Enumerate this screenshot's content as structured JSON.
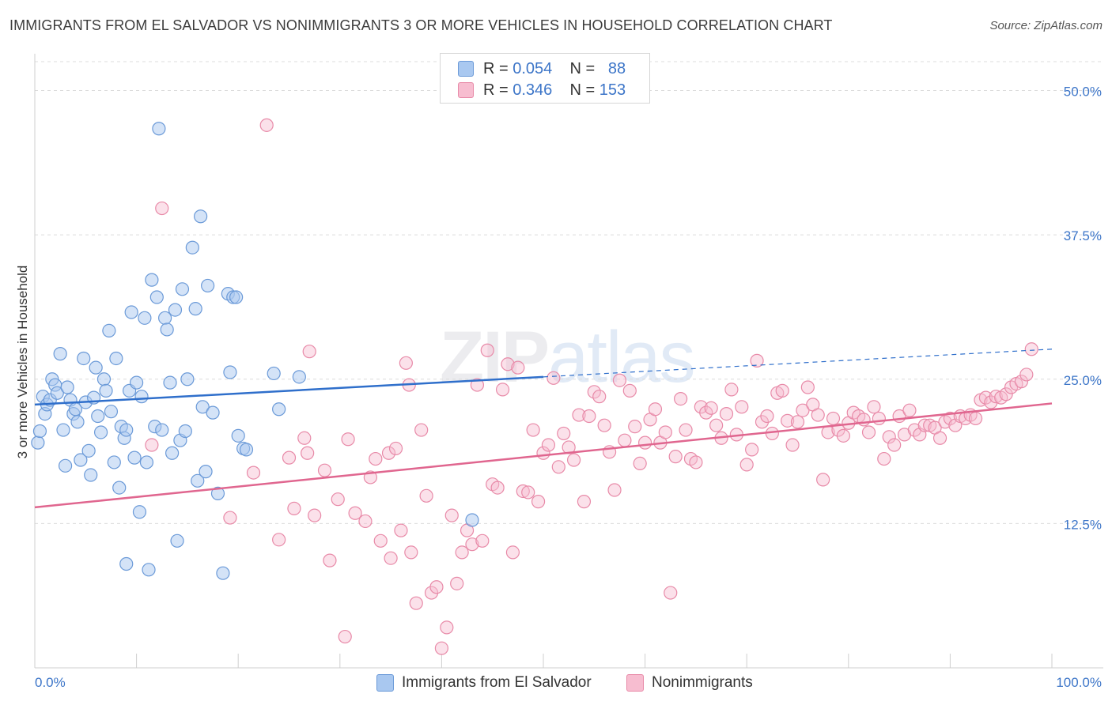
{
  "title": "IMMIGRANTS FROM EL SALVADOR VS NONIMMIGRANTS 3 OR MORE VEHICLES IN HOUSEHOLD CORRELATION CHART",
  "source": "Source: ZipAtlas.com",
  "watermark": {
    "zip": "ZIP",
    "atlas": "atlas"
  },
  "legend": {
    "series1": {
      "r_label": "R =",
      "r_value": "0.054",
      "n_label": "N =",
      "n_value": "88"
    },
    "series2": {
      "r_label": "R =",
      "r_value": "0.346",
      "n_label": "N =",
      "n_value": "153"
    }
  },
  "bottom_legend": {
    "series1": "Immigrants from El Salvador",
    "series2": "Nonimmigrants"
  },
  "colors": {
    "blue_fill": "#a9c8f0",
    "blue_stroke": "#6b9ad8",
    "blue_line": "#2f6fcb",
    "pink_fill": "#f7bdd0",
    "pink_stroke": "#e88aa8",
    "pink_line": "#e0668f",
    "axis_text": "#3c75c8",
    "grid": "#dcdcdc"
  },
  "chart_data": {
    "type": "scatter",
    "title": "IMMIGRANTS FROM EL SALVADOR VS NONIMMIGRANTS 3 OR MORE VEHICLES IN HOUSEHOLD CORRELATION CHART",
    "xlabel": "",
    "ylabel": "3 or more Vehicles in Household",
    "xlim": [
      0,
      100
    ],
    "ylim": [
      0,
      52.5
    ],
    "x_tick_labels": [
      "0.0%",
      "100.0%"
    ],
    "y_ticks": [
      12.5,
      25.0,
      37.5,
      50.0
    ],
    "y_tick_labels": [
      "12.5%",
      "25.0%",
      "37.5%",
      "50.0%"
    ],
    "series": [
      {
        "name": "Immigrants from El Salvador",
        "trend": {
          "x0": 0,
          "y0": 22.8,
          "x1": 50,
          "y1": 25.2,
          "dashed_to_x": 100,
          "dashed_to_y": 27.6
        },
        "points": [
          [
            0.3,
            19.5
          ],
          [
            0.5,
            20.5
          ],
          [
            0.8,
            23.5
          ],
          [
            1.0,
            22.0
          ],
          [
            1.2,
            22.8
          ],
          [
            1.5,
            23.2
          ],
          [
            1.7,
            25.0
          ],
          [
            2.0,
            24.5
          ],
          [
            2.2,
            23.8
          ],
          [
            2.5,
            27.2
          ],
          [
            2.8,
            20.6
          ],
          [
            3.0,
            17.5
          ],
          [
            3.2,
            24.3
          ],
          [
            3.5,
            23.2
          ],
          [
            3.8,
            22.0
          ],
          [
            4.0,
            22.4
          ],
          [
            4.2,
            21.3
          ],
          [
            4.5,
            18.0
          ],
          [
            4.8,
            26.8
          ],
          [
            5.0,
            23.0
          ],
          [
            5.3,
            18.8
          ],
          [
            5.5,
            16.7
          ],
          [
            5.8,
            23.4
          ],
          [
            6.0,
            26.0
          ],
          [
            6.2,
            21.8
          ],
          [
            6.5,
            20.4
          ],
          [
            6.8,
            25.0
          ],
          [
            7.0,
            24.0
          ],
          [
            7.3,
            29.2
          ],
          [
            7.5,
            22.2
          ],
          [
            7.8,
            17.8
          ],
          [
            8.0,
            26.8
          ],
          [
            8.3,
            15.6
          ],
          [
            8.5,
            20.9
          ],
          [
            8.8,
            19.9
          ],
          [
            9.0,
            20.6
          ],
          [
            9.3,
            24.0
          ],
          [
            9.5,
            30.8
          ],
          [
            9.8,
            18.2
          ],
          [
            10.0,
            24.7
          ],
          [
            10.3,
            13.5
          ],
          [
            10.5,
            23.5
          ],
          [
            10.8,
            30.3
          ],
          [
            11.0,
            17.8
          ],
          [
            11.2,
            8.5
          ],
          [
            11.5,
            33.6
          ],
          [
            11.8,
            20.9
          ],
          [
            12.0,
            32.1
          ],
          [
            12.2,
            46.7
          ],
          [
            12.5,
            20.6
          ],
          [
            12.8,
            30.3
          ],
          [
            13.0,
            29.3
          ],
          [
            13.3,
            24.7
          ],
          [
            13.5,
            18.6
          ],
          [
            13.8,
            31.0
          ],
          [
            14.0,
            11.0
          ],
          [
            14.3,
            19.7
          ],
          [
            14.5,
            32.8
          ],
          [
            14.8,
            20.5
          ],
          [
            15.0,
            25.0
          ],
          [
            15.5,
            36.4
          ],
          [
            15.8,
            31.1
          ],
          [
            16.0,
            16.2
          ],
          [
            16.3,
            39.1
          ],
          [
            16.5,
            22.6
          ],
          [
            16.8,
            17.0
          ],
          [
            17.0,
            33.1
          ],
          [
            17.5,
            22.1
          ],
          [
            18.0,
            15.1
          ],
          [
            18.5,
            8.2
          ],
          [
            19.0,
            32.4
          ],
          [
            19.2,
            25.6
          ],
          [
            19.5,
            32.1
          ],
          [
            19.8,
            32.1
          ],
          [
            20.0,
            20.1
          ],
          [
            20.5,
            19.0
          ],
          [
            20.8,
            18.9
          ],
          [
            23.5,
            25.5
          ],
          [
            24.0,
            22.4
          ],
          [
            26.0,
            25.2
          ],
          [
            43.0,
            12.8
          ],
          [
            9.0,
            9.0
          ]
        ]
      },
      {
        "name": "Nonimmigrants",
        "trend": {
          "x0": 0,
          "y0": 13.9,
          "x1": 100,
          "y1": 22.9
        },
        "points": [
          [
            11.5,
            19.3
          ],
          [
            12.5,
            39.8
          ],
          [
            19.2,
            13.0
          ],
          [
            21.5,
            16.9
          ],
          [
            22.8,
            47.0
          ],
          [
            24.0,
            11.1
          ],
          [
            25.0,
            18.2
          ],
          [
            25.5,
            13.8
          ],
          [
            26.5,
            19.9
          ],
          [
            26.8,
            18.6
          ],
          [
            27.0,
            27.4
          ],
          [
            27.5,
            13.2
          ],
          [
            28.5,
            17.1
          ],
          [
            29.0,
            9.3
          ],
          [
            29.8,
            14.6
          ],
          [
            30.5,
            2.7
          ],
          [
            30.8,
            19.8
          ],
          [
            31.5,
            13.4
          ],
          [
            32.5,
            12.7
          ],
          [
            33.0,
            16.5
          ],
          [
            33.5,
            18.1
          ],
          [
            34.0,
            11.0
          ],
          [
            34.8,
            18.6
          ],
          [
            35.0,
            9.5
          ],
          [
            35.5,
            19.0
          ],
          [
            36.0,
            11.9
          ],
          [
            36.5,
            26.4
          ],
          [
            36.8,
            24.5
          ],
          [
            37.0,
            10.0
          ],
          [
            37.5,
            5.6
          ],
          [
            38.0,
            20.6
          ],
          [
            38.5,
            14.9
          ],
          [
            39.0,
            6.5
          ],
          [
            39.5,
            7.0
          ],
          [
            40.0,
            1.7
          ],
          [
            40.5,
            3.5
          ],
          [
            41.0,
            13.2
          ],
          [
            41.5,
            7.3
          ],
          [
            42.0,
            10.0
          ],
          [
            42.5,
            11.9
          ],
          [
            43.0,
            10.7
          ],
          [
            43.5,
            24.5
          ],
          [
            44.0,
            11.0
          ],
          [
            44.5,
            27.5
          ],
          [
            45.0,
            15.9
          ],
          [
            45.5,
            15.6
          ],
          [
            46.0,
            24.1
          ],
          [
            46.5,
            26.3
          ],
          [
            47.0,
            10.0
          ],
          [
            47.5,
            26.0
          ],
          [
            48.0,
            15.3
          ],
          [
            48.5,
            15.2
          ],
          [
            49.0,
            20.6
          ],
          [
            49.5,
            14.4
          ],
          [
            50.0,
            18.6
          ],
          [
            50.5,
            19.3
          ],
          [
            51.0,
            25.1
          ],
          [
            51.5,
            17.4
          ],
          [
            52.0,
            20.3
          ],
          [
            52.5,
            19.1
          ],
          [
            53.0,
            18.0
          ],
          [
            53.5,
            21.9
          ],
          [
            54.0,
            14.4
          ],
          [
            54.5,
            21.8
          ],
          [
            55.0,
            23.9
          ],
          [
            55.5,
            23.5
          ],
          [
            56.0,
            21.0
          ],
          [
            56.5,
            18.7
          ],
          [
            57.0,
            15.4
          ],
          [
            57.5,
            24.9
          ],
          [
            58.0,
            19.7
          ],
          [
            58.5,
            24.0
          ],
          [
            59.0,
            20.9
          ],
          [
            59.5,
            17.7
          ],
          [
            60.0,
            19.5
          ],
          [
            60.5,
            21.5
          ],
          [
            61.0,
            22.4
          ],
          [
            61.5,
            19.5
          ],
          [
            62.0,
            20.4
          ],
          [
            62.5,
            6.5
          ],
          [
            63.0,
            18.3
          ],
          [
            63.5,
            23.3
          ],
          [
            64.0,
            20.6
          ],
          [
            64.5,
            18.1
          ],
          [
            65.0,
            17.8
          ],
          [
            65.5,
            22.6
          ],
          [
            66.0,
            22.1
          ],
          [
            66.5,
            22.5
          ],
          [
            67.0,
            21.0
          ],
          [
            67.5,
            19.9
          ],
          [
            68.0,
            22.0
          ],
          [
            68.5,
            24.1
          ],
          [
            69.0,
            20.2
          ],
          [
            69.5,
            22.6
          ],
          [
            70.0,
            17.6
          ],
          [
            70.5,
            18.9
          ],
          [
            71.0,
            26.6
          ],
          [
            71.5,
            21.3
          ],
          [
            72.0,
            21.8
          ],
          [
            72.5,
            20.3
          ],
          [
            73.0,
            23.8
          ],
          [
            73.5,
            24.0
          ],
          [
            74.0,
            21.4
          ],
          [
            74.5,
            19.3
          ],
          [
            75.0,
            21.3
          ],
          [
            75.5,
            22.3
          ],
          [
            76.0,
            24.3
          ],
          [
            76.5,
            22.8
          ],
          [
            77.0,
            21.9
          ],
          [
            77.5,
            16.3
          ],
          [
            78.0,
            20.4
          ],
          [
            78.5,
            21.6
          ],
          [
            79.0,
            20.6
          ],
          [
            79.5,
            20.1
          ],
          [
            80.0,
            21.2
          ],
          [
            80.5,
            22.1
          ],
          [
            81.0,
            21.8
          ],
          [
            81.5,
            21.5
          ],
          [
            82.0,
            20.4
          ],
          [
            82.5,
            22.6
          ],
          [
            83.0,
            21.6
          ],
          [
            83.5,
            18.1
          ],
          [
            84.0,
            20.0
          ],
          [
            84.5,
            19.3
          ],
          [
            85.0,
            21.8
          ],
          [
            85.5,
            20.2
          ],
          [
            86.0,
            22.3
          ],
          [
            86.5,
            20.6
          ],
          [
            87.0,
            20.2
          ],
          [
            87.5,
            21.0
          ],
          [
            88.0,
            21.0
          ],
          [
            88.5,
            20.8
          ],
          [
            89.0,
            19.9
          ],
          [
            89.5,
            21.3
          ],
          [
            90.0,
            21.6
          ],
          [
            90.5,
            21.0
          ],
          [
            91.0,
            21.8
          ],
          [
            91.5,
            21.6
          ],
          [
            92.0,
            21.9
          ],
          [
            92.5,
            21.6
          ],
          [
            93.0,
            23.2
          ],
          [
            93.5,
            23.4
          ],
          [
            94.0,
            23.0
          ],
          [
            94.5,
            23.5
          ],
          [
            95.0,
            23.4
          ],
          [
            95.5,
            23.7
          ],
          [
            96.0,
            24.3
          ],
          [
            96.5,
            24.6
          ],
          [
            97.0,
            24.8
          ],
          [
            97.5,
            25.4
          ],
          [
            98.0,
            27.6
          ]
        ]
      }
    ]
  }
}
